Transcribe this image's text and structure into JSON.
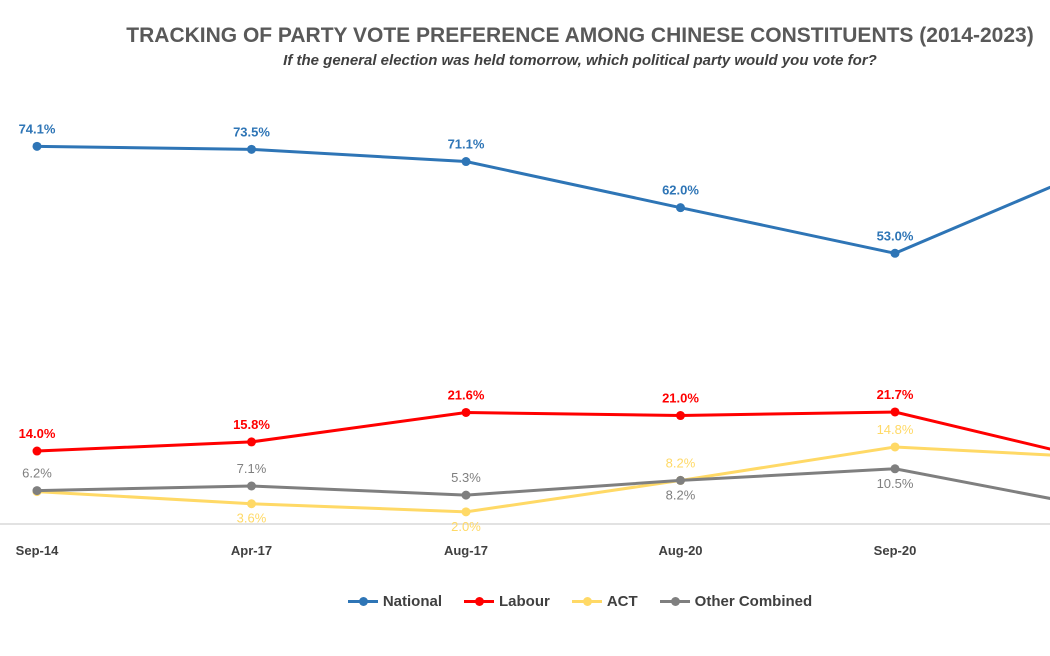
{
  "chart_data": {
    "type": "line",
    "title": "TRACKING OF PARTY VOTE PREFERENCE AMONG CHINESE CONSTITUENTS (2014-2023)",
    "subtitle": "If the general election was held tomorrow, which political party would you vote for?",
    "categories": [
      "Sep-14",
      "Apr-17",
      "Aug-17",
      "Aug-20",
      "Sep-20",
      ""
    ],
    "ylim": [
      0,
      80
    ],
    "grid": false,
    "legend_position": "bottom",
    "series": [
      {
        "name": "National",
        "color": "#2E75B6",
        "values": [
          74.1,
          73.5,
          71.1,
          62.0,
          53.0,
          71
        ],
        "labels": [
          "74.1%",
          "73.5%",
          "71.1%",
          "62.0%",
          "53.0%",
          ""
        ]
      },
      {
        "name": "Labour",
        "color": "#FF0000",
        "values": [
          14.0,
          15.8,
          21.6,
          21.0,
          21.7,
          11.6
        ],
        "labels": [
          "14.0%",
          "15.8%",
          "21.6%",
          "21.0%",
          "21.7%",
          ""
        ]
      },
      {
        "name": "ACT",
        "color": "#FFD966",
        "values": [
          6.0,
          3.6,
          2.0,
          8.2,
          14.8,
          12.6
        ],
        "labels": [
          "",
          "3.6%",
          "2.0%",
          "8.2%",
          "14.8%",
          ""
        ]
      },
      {
        "name": "Other Combined",
        "color": "#7F7F7F",
        "values": [
          6.2,
          7.1,
          5.3,
          8.2,
          10.5,
          2.4
        ],
        "labels": [
          "6.2%",
          "7.1%",
          "5.3%",
          "8.2%",
          "10.5%",
          ""
        ]
      }
    ]
  }
}
